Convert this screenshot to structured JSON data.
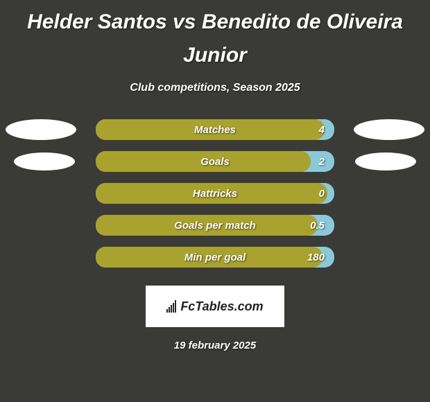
{
  "title": "Helder Santos vs Benedito de Oliveira Junior",
  "subtitle": "Club competitions, Season 2025",
  "background_color": "#3a3a37",
  "text_color": "#ffffff",
  "ellipse_color": "#ffffff",
  "stats": [
    {
      "label": "Matches",
      "value": "4",
      "show_ellipses": true,
      "fill_color": "#a9a22e",
      "track_color": "#8bc9d9",
      "fill_percent": 96
    },
    {
      "label": "Goals",
      "value": "2",
      "show_ellipses": true,
      "fill_color": "#a9a22e",
      "track_color": "#8bc9d9",
      "fill_percent": 90
    },
    {
      "label": "Hattricks",
      "value": "0",
      "show_ellipses": false,
      "fill_color": "#a9a22e",
      "track_color": "#8bc9d9",
      "fill_percent": 97
    },
    {
      "label": "Goals per match",
      "value": "0.5",
      "show_ellipses": false,
      "fill_color": "#a9a22e",
      "track_color": "#8bc9d9",
      "fill_percent": 93
    },
    {
      "label": "Min per goal",
      "value": "180",
      "show_ellipses": false,
      "fill_color": "#a9a22e",
      "track_color": "#8bc9d9",
      "fill_percent": 95
    }
  ],
  "footer": {
    "logo_text": "FcTables.com",
    "logo_bg": "#ffffff",
    "logo_text_color": "#222222"
  },
  "date": "19 february 2025"
}
